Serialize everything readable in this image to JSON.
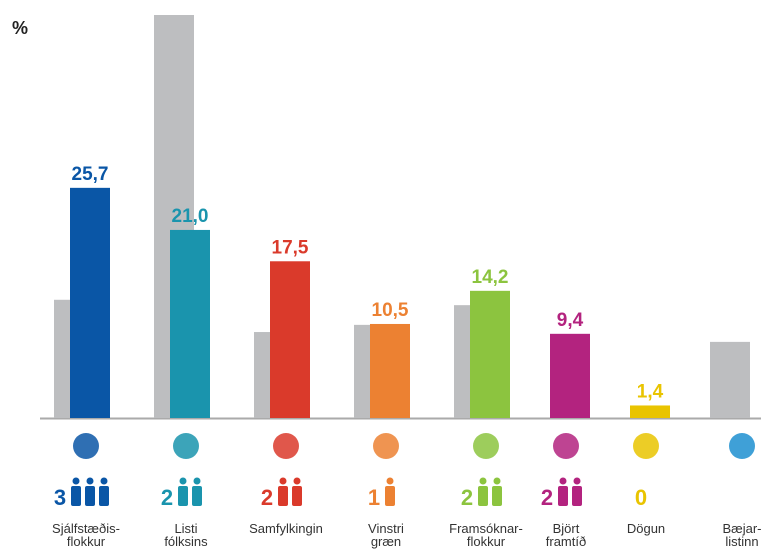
{
  "chart_data": {
    "type": "bar",
    "y_label": "%",
    "categories": [
      "Sjálfstæðis-\nflokkur",
      "Listi\nfólksins",
      "Samfylkingin",
      "Vinstri\ngræn",
      "Framsóknar-\nflokkur",
      "Björt\nframtíð",
      "Dögun",
      "Bæjar-\nlistinn"
    ],
    "ylim": [
      0,
      45
    ],
    "series": [
      {
        "color": "#bdbec0",
        "values": [
          13.2,
          45.0,
          9.6,
          10.4,
          12.6,
          null,
          null,
          8.5
        ]
      },
      {
        "colors": [
          "#0a56a6",
          "#1a94ad",
          "#da3a2b",
          "#ec8132",
          "#8cc43f",
          "#b3237f",
          "#e9c400",
          "#1d8fd0"
        ],
        "values": [
          25.7,
          21.0,
          17.5,
          10.5,
          14.2,
          9.4,
          1.4,
          null
        ],
        "value_labels": [
          "25,7",
          "21,0",
          "17,5",
          "10,5",
          "14,2",
          "9,4",
          "1,4",
          null
        ]
      }
    ],
    "seats": [
      3,
      2,
      2,
      1,
      2,
      2,
      0,
      null
    ]
  }
}
